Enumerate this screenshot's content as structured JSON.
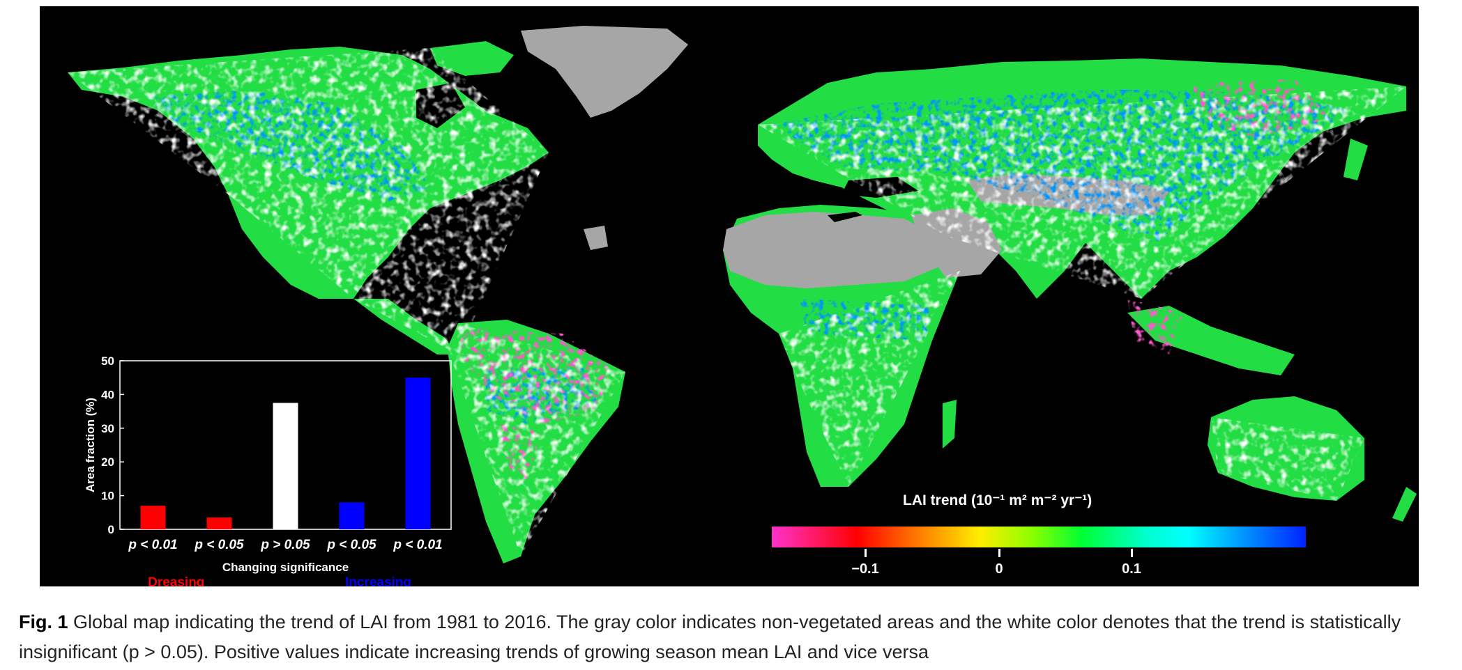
{
  "colors": {
    "background": "#000000",
    "non_vegetated": "#a6a6a6",
    "decreasing": "#ff0000",
    "insignificant": "#ffffff",
    "increasing": "#0000ff"
  },
  "colorbar": {
    "title": "LAI trend (10⁻¹ m² m⁻² yr⁻¹)",
    "ticks": [
      "−0.1",
      "0",
      "0.1"
    ],
    "tick_values": [
      -0.1,
      0,
      0.1
    ],
    "range": [
      -0.2,
      0.2
    ],
    "colormap": [
      "#ff33cc",
      "#ff0000",
      "#ff7700",
      "#ffee00",
      "#88ff00",
      "#00ff33",
      "#00ffcc",
      "#00ffff",
      "#0099ff",
      "#0022ff"
    ]
  },
  "chart_data": {
    "type": "bar",
    "categories": [
      "p < 0.01",
      "p < 0.05",
      "p > 0.05",
      "p < 0.05",
      "p < 0.01"
    ],
    "values": [
      7,
      3.5,
      37.5,
      8,
      45
    ],
    "bar_colors": [
      "#ff0000",
      "#ff0000",
      "#ffffff",
      "#0000ff",
      "#0000ff"
    ],
    "ylabel": "Area fraction (%)",
    "xlabel": "Changing significance",
    "ylim": [
      0,
      50
    ],
    "yticks": [
      "0",
      "10",
      "20",
      "30",
      "40",
      "50"
    ],
    "groups": [
      {
        "label": "Dreasing",
        "color": "#ff0000"
      },
      {
        "label": "Increasing",
        "color": "#0000ff"
      }
    ]
  },
  "caption": {
    "label": "Fig. 1",
    "text": "Global map indicating the trend of LAI from 1981 to 2016. The gray color indicates non-vegetated areas and the white color denotes that the trend is statistically insignificant (p > 0.05). Positive values indicate increasing trends of growing season mean LAI and vice versa"
  }
}
